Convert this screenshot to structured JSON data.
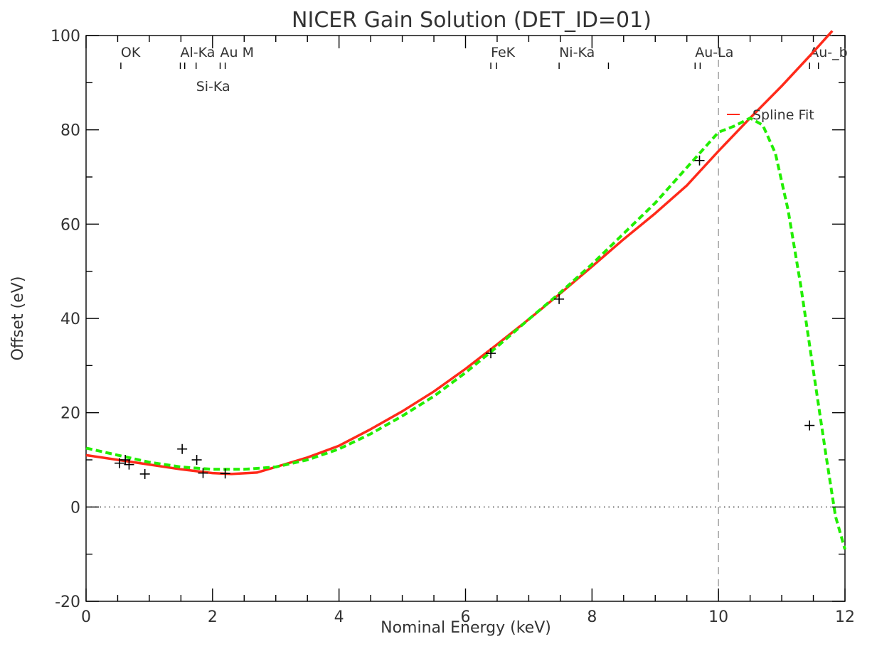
{
  "chart_data": {
    "type": "line",
    "title": "NICER Gain Solution (DET_ID=01)",
    "xlabel": "Nominal Energy (keV)",
    "ylabel": "Offset (eV)",
    "xlim": [
      0,
      12
    ],
    "ylim": [
      -20,
      100
    ],
    "xticks": [
      0,
      2,
      4,
      6,
      8,
      10,
      12
    ],
    "yticks": [
      -20,
      0,
      20,
      40,
      60,
      80,
      100
    ],
    "grid": false,
    "legend_position": "top-right",
    "reference_lines": {
      "zero_line": {
        "y": 0,
        "style": "dotted",
        "color": "#555555"
      },
      "vertical_line": {
        "x": 10,
        "style": "dashed",
        "color": "#aaaaaa"
      }
    },
    "line_markers": [
      {
        "label": "OK",
        "x": [
          0.55
        ],
        "level": 1
      },
      {
        "label": "Al-Ka",
        "x": [
          1.49,
          1.56
        ],
        "level": 1
      },
      {
        "label": "Si-Ka",
        "x": [
          1.74
        ],
        "level": 2
      },
      {
        "label": "Au M",
        "x": [
          2.12,
          2.2
        ],
        "level": 1
      },
      {
        "label": "FeK",
        "x": [
          6.4,
          6.49
        ],
        "level": 1
      },
      {
        "label": "Ni-Ka",
        "x": [
          7.48,
          8.26
        ],
        "level": 1
      },
      {
        "label": "Au-La",
        "x": [
          9.63,
          9.71
        ],
        "level": 1
      },
      {
        "label": "Au-_b",
        "x": [
          11.44,
          11.58
        ],
        "level": 1
      }
    ],
    "series": [
      {
        "name": "Spline Fit",
        "color": "#ff2a1a",
        "style": "solid",
        "x": [
          0,
          0.5,
          1,
          1.5,
          2,
          2.3,
          2.7,
          3,
          3.5,
          4,
          4.5,
          5,
          5.5,
          6,
          6.5,
          7,
          7.5,
          8,
          8.5,
          9,
          9.5,
          10,
          10.5,
          11,
          11.5,
          11.8
        ],
        "y": [
          11,
          10,
          9,
          8,
          7.2,
          7,
          7.3,
          8.5,
          10.5,
          13,
          16.5,
          20.3,
          24.5,
          29.3,
          34.5,
          39.8,
          45.3,
          51,
          56.8,
          62.3,
          68.2,
          75.5,
          82.5,
          89.3,
          96.5,
          101
        ]
      },
      {
        "color": "#22ee00",
        "style": "dashed",
        "x": [
          0,
          0.5,
          1,
          1.5,
          2,
          2.5,
          3,
          3.5,
          4,
          4.5,
          5,
          5.5,
          6,
          6.5,
          7,
          7.5,
          8,
          8.5,
          9,
          9.5,
          10,
          10.25,
          10.5,
          10.7,
          10.9,
          11.1,
          11.3,
          11.5,
          11.7,
          11.85,
          12
        ],
        "y": [
          12.5,
          11,
          9.5,
          8.5,
          8,
          8,
          8.5,
          10,
          12.3,
          15.5,
          19.3,
          23.5,
          28.5,
          34,
          39.8,
          45.5,
          51.5,
          58,
          64.5,
          72,
          79.5,
          80.8,
          82.5,
          81,
          75,
          63,
          47,
          29,
          11,
          -2,
          -9
        ]
      }
    ],
    "data_points": {
      "marker": "plus",
      "x": [
        0.53,
        0.62,
        0.68,
        0.93,
        1.52,
        1.75,
        1.85,
        2.2,
        6.4,
        7.48,
        9.7,
        11.44
      ],
      "y": [
        9.3,
        10.0,
        9.0,
        7.0,
        12.3,
        10.0,
        7.2,
        7.1,
        32.6,
        44.1,
        73.5,
        17.3
      ]
    }
  }
}
